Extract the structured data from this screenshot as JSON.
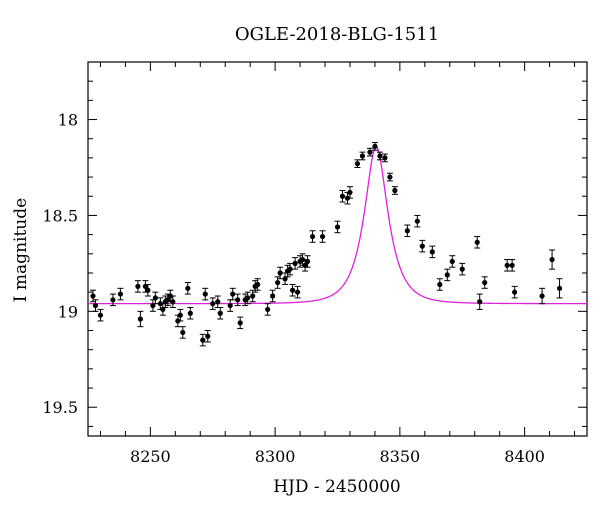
{
  "chart_data": {
    "type": "scatter",
    "title": "OGLE-2018-BLG-1511",
    "xlabel": "HJD - 2450000",
    "ylabel": "I magnitude",
    "xlim": [
      8225,
      8425
    ],
    "ylim": [
      19.65,
      17.7
    ],
    "y_inverted": true,
    "grid": false,
    "x_ticks": [
      8250,
      8300,
      8350,
      8400
    ],
    "y_ticks": [
      18,
      18.5,
      19,
      19.5
    ],
    "x_tick_labels": [
      "8250",
      "8300",
      "8350",
      "8400"
    ],
    "y_tick_labels": [
      "18",
      "18.5",
      "19",
      "19.5"
    ],
    "colors": {
      "points": "#000000",
      "model": "#e020e0"
    },
    "model": {
      "baseline_mag": 18.96,
      "peak_mag": 18.14,
      "t0": 8340.5,
      "tE": 8.0
    },
    "series": [
      {
        "points": [
          [
            8227,
            18.92,
            0.03
          ],
          [
            8228,
            18.97,
            0.03
          ],
          [
            8230,
            19.02,
            0.03
          ],
          [
            8235,
            18.94,
            0.03
          ],
          [
            8238,
            18.91,
            0.03
          ],
          [
            8245,
            18.87,
            0.03
          ],
          [
            8246,
            19.04,
            0.04
          ],
          [
            8248,
            18.87,
            0.03
          ],
          [
            8249,
            18.89,
            0.03
          ],
          [
            8251,
            18.97,
            0.03
          ],
          [
            8252,
            18.93,
            0.03
          ],
          [
            8254,
            18.96,
            0.03
          ],
          [
            8255,
            18.99,
            0.03
          ],
          [
            8256,
            18.95,
            0.03
          ],
          [
            8257,
            18.94,
            0.03
          ],
          [
            8258,
            18.92,
            0.03
          ],
          [
            8259,
            18.95,
            0.03
          ],
          [
            8261,
            19.05,
            0.03
          ],
          [
            8262,
            19.02,
            0.03
          ],
          [
            8263,
            19.11,
            0.03
          ],
          [
            8265,
            18.88,
            0.03
          ],
          [
            8266,
            19.01,
            0.03
          ],
          [
            8271,
            19.15,
            0.03
          ],
          [
            8272,
            18.91,
            0.03
          ],
          [
            8273,
            19.13,
            0.03
          ],
          [
            8275,
            18.96,
            0.03
          ],
          [
            8277,
            18.95,
            0.03
          ],
          [
            8278,
            19.01,
            0.03
          ],
          [
            8282,
            18.97,
            0.03
          ],
          [
            8283,
            18.91,
            0.03
          ],
          [
            8285,
            18.94,
            0.03
          ],
          [
            8286,
            19.06,
            0.03
          ],
          [
            8288,
            18.94,
            0.03
          ],
          [
            8289,
            18.93,
            0.03
          ],
          [
            8291,
            18.92,
            0.03
          ],
          [
            8292,
            18.87,
            0.03
          ],
          [
            8293,
            18.86,
            0.03
          ],
          [
            8297,
            18.99,
            0.03
          ],
          [
            8299,
            18.92,
            0.03
          ],
          [
            8301,
            18.85,
            0.03
          ],
          [
            8302,
            18.8,
            0.03
          ],
          [
            8304,
            18.83,
            0.03
          ],
          [
            8305,
            18.79,
            0.03
          ],
          [
            8306,
            18.78,
            0.03
          ],
          [
            8307,
            18.89,
            0.03
          ],
          [
            8308,
            18.75,
            0.03
          ],
          [
            8309,
            18.9,
            0.03
          ],
          [
            8310,
            18.74,
            0.03
          ],
          [
            8311,
            18.73,
            0.03
          ],
          [
            8312,
            18.76,
            0.03
          ],
          [
            8313,
            18.74,
            0.03
          ],
          [
            8315,
            18.61,
            0.03
          ],
          [
            8319,
            18.61,
            0.03
          ],
          [
            8325,
            18.56,
            0.03
          ],
          [
            8327,
            18.4,
            0.03
          ],
          [
            8329,
            18.41,
            0.03
          ],
          [
            8330,
            18.38,
            0.03
          ],
          [
            8333,
            18.23,
            0.02
          ],
          [
            8335,
            18.19,
            0.02
          ],
          [
            8338,
            18.17,
            0.02
          ],
          [
            8340,
            18.14,
            0.02
          ],
          [
            8342,
            18.19,
            0.02
          ],
          [
            8344,
            18.2,
            0.02
          ],
          [
            8346,
            18.3,
            0.02
          ],
          [
            8348,
            18.37,
            0.02
          ],
          [
            8353,
            18.58,
            0.03
          ],
          [
            8357,
            18.53,
            0.03
          ],
          [
            8359,
            18.66,
            0.03
          ],
          [
            8363,
            18.69,
            0.03
          ],
          [
            8366,
            18.86,
            0.03
          ],
          [
            8369,
            18.81,
            0.03
          ],
          [
            8371,
            18.74,
            0.03
          ],
          [
            8375,
            18.78,
            0.03
          ],
          [
            8381,
            18.64,
            0.03
          ],
          [
            8382,
            18.95,
            0.04
          ],
          [
            8384,
            18.85,
            0.03
          ],
          [
            8393,
            18.76,
            0.03
          ],
          [
            8395,
            18.76,
            0.03
          ],
          [
            8396,
            18.9,
            0.03
          ],
          [
            8407,
            18.92,
            0.04
          ],
          [
            8411,
            18.73,
            0.05
          ],
          [
            8414,
            18.88,
            0.05
          ]
        ]
      }
    ]
  }
}
